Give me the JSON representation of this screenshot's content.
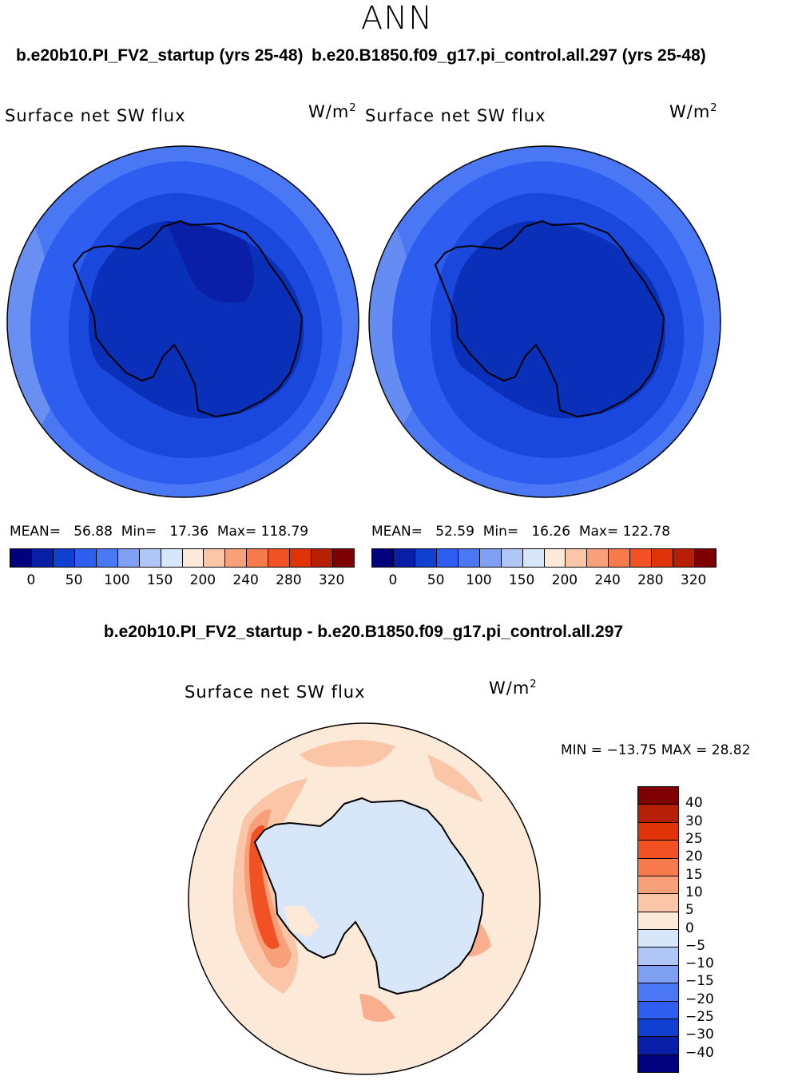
{
  "season": "ANN",
  "panels": [
    {
      "case": "b.e20b10.PI_FV2_startup (yrs 25-48)",
      "variable": "Surface net SW flux",
      "units_base": "W/m",
      "units_exp": "2",
      "stats": {
        "mean_label": "MEAN=",
        "mean": "56.88",
        "min_label": "Min=",
        "min": "17.36",
        "max_label": "Max=",
        "max": "118.79"
      }
    },
    {
      "case": "b.e20.B1850.f09_g17.pi_control.all.297 (yrs 25-48)",
      "variable": "Surface net SW flux",
      "units_base": "W/m",
      "units_exp": "2",
      "stats": {
        "mean_label": "MEAN=",
        "mean": "52.59",
        "min_label": "Min=",
        "min": "16.26",
        "max_label": "Max=",
        "max": "122.78"
      }
    }
  ],
  "field_colorbar": {
    "colors": [
      "#00007f",
      "#0a1fa8",
      "#1040d0",
      "#2e5ef0",
      "#4a78f5",
      "#7f9ff2",
      "#b0c6f6",
      "#d8e6fa",
      "#fde9d8",
      "#fbc6a8",
      "#f8a07a",
      "#f77b4c",
      "#f25223",
      "#e03308",
      "#b51f05",
      "#7f0000"
    ],
    "labels": [
      "0",
      "50",
      "100",
      "150",
      "200",
      "240",
      "280",
      "320"
    ]
  },
  "difference": {
    "title": "b.e20b10.PI_FV2_startup - b.e20.B1850.f09_g17.pi_control.all.297",
    "variable": "Surface net SW flux",
    "units_base": "W/m",
    "units_exp": "2",
    "minmax": "MIN = −13.75 MAX =  28.82",
    "colorbar": {
      "colors": [
        "#7f0000",
        "#b51f05",
        "#e03308",
        "#f25223",
        "#f77b4c",
        "#f8a07a",
        "#fbc6a8",
        "#fde9d8",
        "#d8e6fa",
        "#b0c6f6",
        "#7f9ff2",
        "#4a78f5",
        "#2e5ef0",
        "#1040d0",
        "#0a1fa8",
        "#00007f"
      ],
      "labels": [
        "40",
        "30",
        "25",
        "20",
        "15",
        "10",
        "5",
        "0",
        "−5",
        "−10",
        "−15",
        "−20",
        "−25",
        "−30",
        "−40"
      ]
    }
  }
}
